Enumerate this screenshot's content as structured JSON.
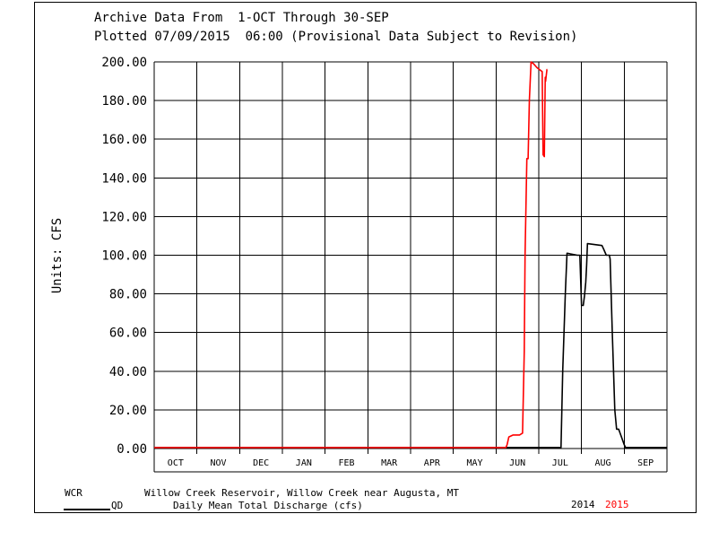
{
  "header": {
    "line1": "Archive Data From  1-OCT Through 30-SEP",
    "line2": "Plotted 07/09/2015  06:00 (Provisional Data Subject to Revision)"
  },
  "footer": {
    "station_code": "WCR",
    "station_name": "Willow Creek Reservoir, Willow Creek near Augusta, MT",
    "param_code": "QD",
    "param_desc": "Daily Mean Total Discharge (cfs)",
    "year1": "2014",
    "year2": "2015"
  },
  "colors": {
    "series_2014": "#000000",
    "series_2015": "#ff0000"
  },
  "chart_data": {
    "type": "line",
    "title": "",
    "xlabel": "",
    "ylabel": "Units: CFS",
    "ylim": [
      0,
      200
    ],
    "yticks": [
      "0.00",
      "20.00",
      "40.00",
      "60.00",
      "80.00",
      "100.00",
      "120.00",
      "140.00",
      "160.00",
      "180.00",
      "200.00"
    ],
    "categories": [
      "OCT",
      "NOV",
      "DEC",
      "JAN",
      "FEB",
      "MAR",
      "APR",
      "MAY",
      "JUN",
      "JUL",
      "AUG",
      "SEP"
    ],
    "grid": true,
    "legend_position": "bottom",
    "series": [
      {
        "name": "2014",
        "color": "#000000",
        "x": [
          0.0,
          9.52,
          9.56,
          9.62,
          9.66,
          9.9,
          9.96,
          10.0,
          10.04,
          10.07,
          10.1,
          10.12,
          10.14,
          10.48,
          10.52,
          10.58,
          10.62,
          10.65,
          10.67,
          10.72,
          10.78,
          10.82,
          10.87,
          11.0,
          11.03,
          11.06,
          11.12,
          11.16,
          11.2,
          12.0
        ],
        "y": [
          0.5,
          0.5,
          40.0,
          80.0,
          101.0,
          100.0,
          100.0,
          74.0,
          74.0,
          79.0,
          86.0,
          95.0,
          106.0,
          105.0,
          103.0,
          100.0,
          100.0,
          100.0,
          98.0,
          60.0,
          20.0,
          10.0,
          10.0,
          2.0,
          0.5,
          0.5,
          0.5,
          0.5,
          0.5,
          0.5
        ]
      },
      {
        "name": "2015",
        "color": "#ff0000",
        "x": [
          0.0,
          8.23,
          8.26,
          8.3,
          8.4,
          8.55,
          8.62,
          8.66,
          8.68,
          8.72,
          8.75,
          8.78,
          8.82,
          8.88,
          8.96,
          9.08,
          9.1,
          9.13,
          9.15,
          9.16,
          9.19,
          9.2
        ],
        "y": [
          0.5,
          0.5,
          2.0,
          6.0,
          7.0,
          7.0,
          8.0,
          50.0,
          100.0,
          150.0,
          150.0,
          180.0,
          200.0,
          199.0,
          197.0,
          195.0,
          152.0,
          151.0,
          192.0,
          190.0,
          196.0,
          196.0
        ]
      }
    ]
  }
}
